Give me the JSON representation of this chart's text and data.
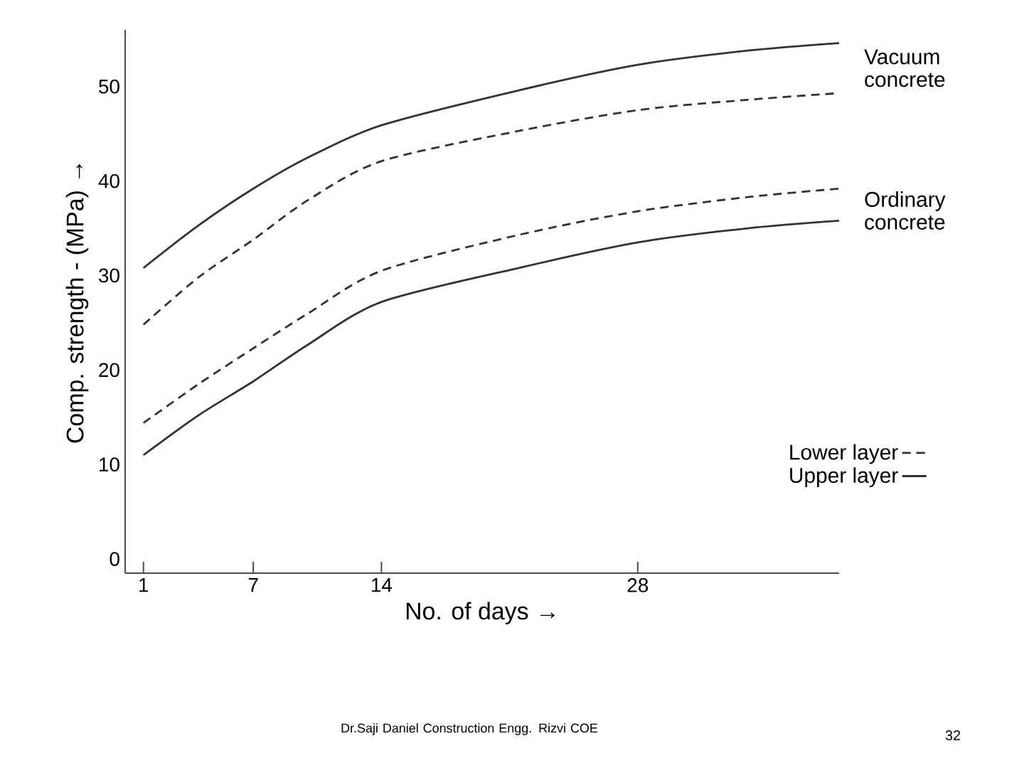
{
  "chart_data": {
    "type": "line",
    "xlabel": "No. of days →",
    "ylabel": "Comp. strength - (MPa) →",
    "xlim": [
      0,
      39
    ],
    "ylim": [
      -1.5,
      56
    ],
    "xticks": [
      1,
      7,
      14,
      28
    ],
    "yticks": [
      0,
      10,
      20,
      30,
      40,
      50
    ],
    "x": [
      1,
      4,
      7,
      10,
      14,
      21.5,
      28,
      34,
      39
    ],
    "series": [
      {
        "color": "#333333",
        "line_style": "solid",
        "values": [
          30.8,
          35.3,
          39.2,
          42.5,
          45.9,
          49.6,
          52.3,
          53.8,
          54.6
        ]
      },
      {
        "color": "#333333",
        "line_style": "dashed",
        "values": [
          24.8,
          29.8,
          33.8,
          38,
          42.1,
          45.3,
          47.5,
          48.6,
          49.3
        ]
      },
      {
        "name": "Lower layer",
        "color": "#333333",
        "line_style": "dashed",
        "values": [
          14.4,
          18.5,
          22.3,
          26,
          30.5,
          34.3,
          36.8,
          38.3,
          39.2
        ]
      },
      {
        "name": "Upper layer",
        "color": "#333333",
        "line_style": "solid",
        "values": [
          11,
          15.2,
          18.8,
          22.7,
          27.2,
          30.8,
          33.5,
          35,
          35.8
        ]
      }
    ],
    "legend": "bottom right",
    "marker": "none",
    "grid": false,
    "annotations": [
      "Vacuum concrete",
      "Ordinary concrete",
      "Dr.Saji Daniel Construction Engg. Rizvi COE",
      "32"
    ]
  }
}
